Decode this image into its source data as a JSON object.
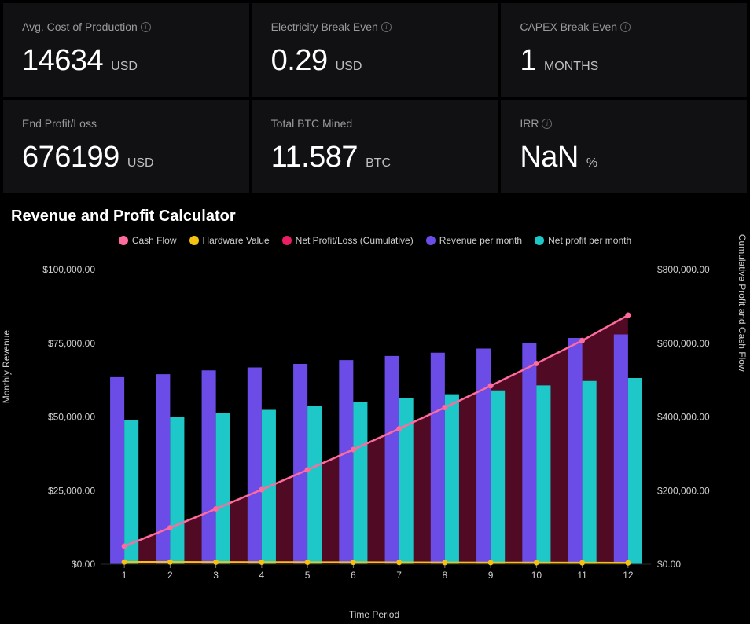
{
  "metrics": {
    "avg_cost_production": {
      "label": "Avg. Cost of Production",
      "value": "14634",
      "unit": "USD",
      "info": true
    },
    "electricity_break_even": {
      "label": "Electricity Break Even",
      "value": "0.29",
      "unit": "USD",
      "info": true
    },
    "capex_break_even": {
      "label": "CAPEX Break Even",
      "value": "1",
      "unit": "MONTHS",
      "info": true
    },
    "end_profit_loss": {
      "label": "End Profit/Loss",
      "value": "676199",
      "unit": "USD",
      "info": false
    },
    "total_btc_mined": {
      "label": "Total BTC Mined",
      "value": "11.587",
      "unit": "BTC",
      "info": false
    },
    "irr": {
      "label": "IRR",
      "value": "NaN",
      "unit": "%",
      "info": true
    }
  },
  "chart": {
    "title": "Revenue and Profit Calculator",
    "legend": [
      {
        "label": "Cash Flow",
        "color": "#ff6b9d"
      },
      {
        "label": "Hardware Value",
        "color": "#f5c211"
      },
      {
        "label": "Net Profit/Loss (Cumulative)",
        "color": "#e91e63"
      },
      {
        "label": "Revenue per month",
        "color": "#6b4ce6"
      },
      {
        "label": "Net profit per month",
        "color": "#1ec8c8"
      }
    ],
    "x_label": "Time Period",
    "y_left_label": "Monthly Revenue",
    "y_right_label": "Cumulative Profit and Cash Flow",
    "categories": [
      "1",
      "2",
      "3",
      "4",
      "5",
      "6",
      "7",
      "8",
      "9",
      "10",
      "11",
      "12"
    ],
    "y_left_ticks": [
      {
        "v": 0,
        "label": "$0.00"
      },
      {
        "v": 25000,
        "label": "$25,000.00"
      },
      {
        "v": 50000,
        "label": "$50,000.00"
      },
      {
        "v": 75000,
        "label": "$75,000.00"
      },
      {
        "v": 100000,
        "label": "$100,000.00"
      }
    ],
    "y_right_ticks": [
      {
        "v": 0,
        "label": "$0.00"
      },
      {
        "v": 200000,
        "label": "$200,000.00"
      },
      {
        "v": 400000,
        "label": "$400,000.00"
      },
      {
        "v": 600000,
        "label": "$600,000.00"
      },
      {
        "v": 800000,
        "label": "$800,000.00"
      }
    ],
    "y_left_max": 100000,
    "y_right_max": 800000,
    "bars_revenue": [
      63500,
      64500,
      65800,
      66800,
      68000,
      69300,
      70700,
      71800,
      73200,
      75000,
      76800,
      78000
    ],
    "bars_netprofit": [
      49000,
      50000,
      51300,
      52400,
      53600,
      55000,
      56500,
      57700,
      59000,
      60700,
      62200,
      63200
    ],
    "line_cashflow": [
      49000,
      99000,
      150300,
      202700,
      256300,
      311300,
      367800,
      425500,
      484500,
      545200,
      607400,
      676200
    ],
    "line_hardware": [
      6000,
      5800,
      5600,
      5400,
      5200,
      5000,
      4800,
      4600,
      4400,
      4200,
      4000,
      3800
    ],
    "line_cum_pl": [
      49000,
      99000,
      150300,
      202700,
      256300,
      311300,
      367800,
      425500,
      484500,
      545200,
      607400,
      676200
    ],
    "colors": {
      "revenue_bar": "#6b4ce6",
      "netprofit_bar": "#1ec8c8",
      "cashflow_line": "#ff6b9d",
      "hardware_line": "#f5c211",
      "cum_pl_area": "#e91e63",
      "grid": "#2a2a2a",
      "axis_text": "#cfcfcf",
      "background": "#000000"
    },
    "bar_group_width": 0.62,
    "line_width": 2.5,
    "marker_radius": 3.5
  }
}
